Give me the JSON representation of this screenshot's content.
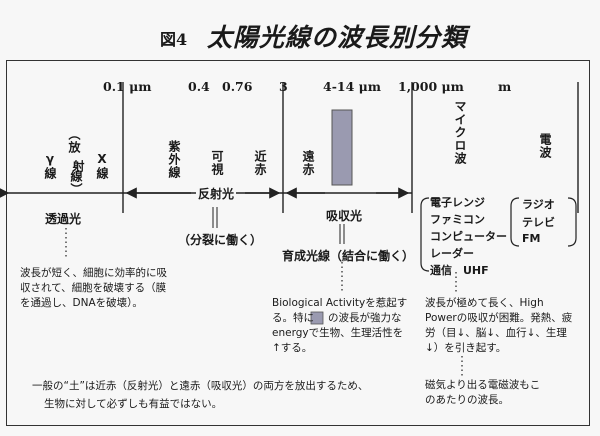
{
  "title": {
    "figure_number": "図4",
    "text": "太陽光線の波長別分類"
  },
  "scale": {
    "ticks": [
      "0.1 μm",
      "0.4",
      "0.76",
      "3",
      "4-14 μm",
      "1,000 μm",
      "m"
    ]
  },
  "bands": {
    "gamma": "γ線",
    "radiation_open": "（放",
    "radiation_mid": "射",
    "radiation_close": "線）",
    "xray": "X線",
    "uv": "紫外線",
    "visible": "可視",
    "near_ir": "近赤",
    "far_ir": "遠赤",
    "microwave": "マイクロ波",
    "radio": "電波"
  },
  "categories": {
    "transmitted": "透過光",
    "reflected": "反射光",
    "absorbed": "吸収光",
    "split_action": "（分裂に働く）",
    "growth_light": "育成光線（結合に働く）"
  },
  "microwave_list": [
    "電子レンジ",
    "ファミコン",
    "コンピューター",
    "レーダー",
    "通信　UHF"
  ],
  "radio_list": [
    "ラジオ",
    "テレビ",
    "FM"
  ],
  "notes": {
    "transmitted": "波長が短く、細胞に効率的に吸収されて、細胞を破壊する（膜を通過し、DNAを破壊）。",
    "absorbed_part1": "Biological Activityを惹起する。特に",
    "absorbed_part2": "の波長が強力なenergyで生物、生理活性を↑する。",
    "microwave": "波長が極めて長く、High Powerの吸収が困難。発熱、疲労（目↓、脳↓、血行↓、生理↓）を引き起す。",
    "radio": "磁気より出る電磁波もこのあたりの波長。",
    "footer_line1": "一般の“土”は近赤（反射光）と遠赤（吸収光）の両方を放出するため、",
    "footer_line2": "生物に対して必ずしも有益ではない。"
  },
  "colors": {
    "highlight": "#9a9ab0",
    "line": "#222222"
  }
}
